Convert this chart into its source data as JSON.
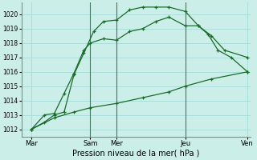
{
  "xlabel": "Pression niveau de la mer( hPa )",
  "background_color": "#cceee8",
  "grid_color": "#aaddda",
  "line_color": "#1a6b2a",
  "yticks": [
    1012,
    1013,
    1014,
    1015,
    1016,
    1017,
    1018,
    1019,
    1020
  ],
  "ylim_min": 1011.5,
  "ylim_max": 1020.8,
  "xlim_min": 0,
  "xlim_max": 7.0,
  "xtick_positions": [
    0.3,
    2.1,
    2.9,
    5.0,
    6.9
  ],
  "xticklabels": [
    "Mar",
    "Sam",
    "Mer",
    "Jeu",
    "Ven"
  ],
  "vlines": [
    2.1,
    2.9,
    5.0
  ],
  "line1_x": [
    0.3,
    0.7,
    1.0,
    1.3,
    1.6,
    1.9,
    2.1,
    2.5,
    2.9,
    3.3,
    3.7,
    4.1,
    4.5,
    5.0,
    5.4,
    5.8,
    6.2,
    6.9
  ],
  "line1_y": [
    1012.0,
    1013.0,
    1013.1,
    1014.5,
    1015.9,
    1017.5,
    1018.0,
    1018.3,
    1018.2,
    1018.8,
    1019.0,
    1019.5,
    1019.8,
    1019.2,
    1019.2,
    1018.5,
    1017.5,
    1017.0
  ],
  "line2_x": [
    0.3,
    0.7,
    1.0,
    1.3,
    1.6,
    1.9,
    2.2,
    2.5,
    2.9,
    3.3,
    3.7,
    4.1,
    4.5,
    5.0,
    5.4,
    5.7,
    6.0,
    6.4,
    6.9
  ],
  "line2_y": [
    1012.0,
    1012.5,
    1013.0,
    1013.2,
    1015.8,
    1017.3,
    1018.8,
    1019.5,
    1019.6,
    1020.3,
    1020.5,
    1020.5,
    1020.5,
    1020.2,
    1019.2,
    1018.6,
    1017.5,
    1017.0,
    1016.0
  ],
  "line3_x": [
    0.3,
    1.0,
    1.6,
    2.1,
    2.9,
    3.7,
    4.5,
    5.0,
    5.8,
    6.9
  ],
  "line3_y": [
    1012.0,
    1012.8,
    1013.2,
    1013.5,
    1013.8,
    1014.2,
    1014.6,
    1015.0,
    1015.5,
    1016.0
  ]
}
